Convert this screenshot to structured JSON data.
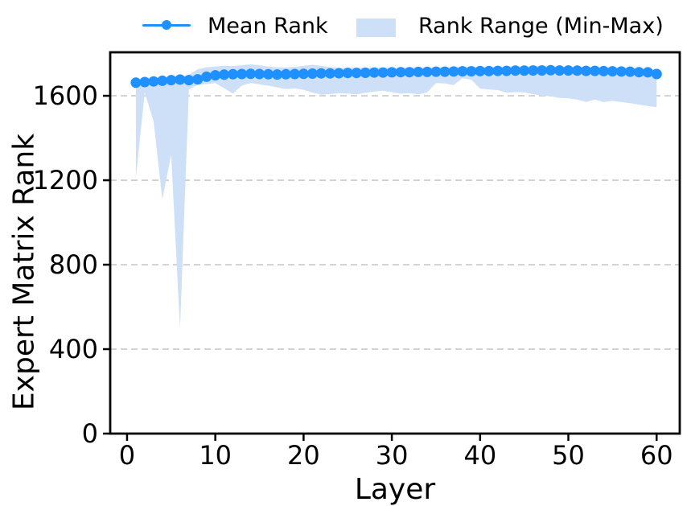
{
  "figure": {
    "title": "",
    "xlabel": "Layer",
    "ylabel": "Expert Matrix Rank",
    "legend": {
      "mean_label": "Mean Rank",
      "range_label": "Rank Range (Min-Max)"
    }
  },
  "chart_data": {
    "type": "line",
    "title": "",
    "xlabel": "Layer",
    "ylabel": "Expert Matrix Rank",
    "legend_position": "top-center",
    "grid": {
      "axis": "y",
      "style": "dashed",
      "color": "#c9c9c9"
    },
    "colors": {
      "mean_line": "#1E90FF",
      "band_fill": "#CEE0F7",
      "axis": "#000000",
      "tick_text": "#000000"
    },
    "xlim": [
      -1.91,
      62.62
    ],
    "ylim": [
      0,
      1806
    ],
    "x_ticks": [
      0,
      10,
      20,
      30,
      40,
      50,
      60
    ],
    "y_ticks": [
      0,
      400,
      800,
      1200,
      1600
    ],
    "x": [
      1,
      2,
      3,
      4,
      5,
      6,
      7,
      8,
      9,
      10,
      11,
      12,
      13,
      14,
      15,
      16,
      17,
      18,
      19,
      20,
      21,
      22,
      23,
      24,
      25,
      26,
      27,
      28,
      29,
      30,
      31,
      32,
      33,
      34,
      35,
      36,
      37,
      38,
      39,
      40,
      41,
      42,
      43,
      44,
      45,
      46,
      47,
      48,
      49,
      50,
      51,
      52,
      53,
      54,
      55,
      56,
      57,
      58,
      59,
      60
    ],
    "series": [
      {
        "name": "Mean Rank",
        "role": "mean",
        "style": "line-with-markers",
        "values": [
          1662,
          1665,
          1668,
          1671,
          1674,
          1677,
          1674,
          1678,
          1690,
          1697,
          1700,
          1702,
          1703,
          1704,
          1703,
          1702,
          1701,
          1702,
          1703,
          1704,
          1705,
          1706,
          1706,
          1707,
          1708,
          1708,
          1709,
          1710,
          1710,
          1711,
          1712,
          1712,
          1713,
          1713,
          1714,
          1714,
          1715,
          1716,
          1716,
          1717,
          1717,
          1718,
          1718,
          1719,
          1719,
          1720,
          1720,
          1721,
          1720,
          1720,
          1719,
          1718,
          1718,
          1717,
          1716,
          1715,
          1714,
          1712,
          1711,
          1703
        ]
      },
      {
        "name": "Min Rank",
        "role": "band-lower",
        "style": "filled-band-edge",
        "values": [
          1210,
          1615,
          1480,
          1110,
          1320,
          498,
          1630,
          1652,
          1655,
          1660,
          1636,
          1610,
          1648,
          1660,
          1654,
          1648,
          1640,
          1632,
          1635,
          1628,
          1615,
          1605,
          1608,
          1612,
          1610,
          1607,
          1614,
          1620,
          1624,
          1617,
          1610,
          1612,
          1607,
          1616,
          1660,
          1658,
          1650,
          1683,
          1676,
          1634,
          1630,
          1627,
          1615,
          1617,
          1616,
          1608,
          1600,
          1598,
          1590,
          1588,
          1582,
          1570,
          1582,
          1570,
          1576,
          1570,
          1565,
          1558,
          1552,
          1546
        ]
      },
      {
        "name": "Max Rank",
        "role": "band-upper",
        "style": "filled-band-edge",
        "values": [
          1668,
          1672,
          1676,
          1680,
          1684,
          1688,
          1700,
          1725,
          1735,
          1738,
          1742,
          1740,
          1745,
          1749,
          1745,
          1738,
          1735,
          1734,
          1737,
          1742,
          1747,
          1742,
          1736,
          1732,
          1733,
          1734,
          1732,
          1733,
          1734,
          1732,
          1733,
          1735,
          1732,
          1733,
          1735,
          1736,
          1735,
          1737,
          1739,
          1737,
          1735,
          1737,
          1739,
          1741,
          1739,
          1741,
          1744,
          1741,
          1738,
          1737,
          1739,
          1737,
          1735,
          1734,
          1735,
          1733,
          1731,
          1729,
          1727,
          1723
        ]
      }
    ],
    "band_label": "Rank Range (Min-Max)"
  }
}
